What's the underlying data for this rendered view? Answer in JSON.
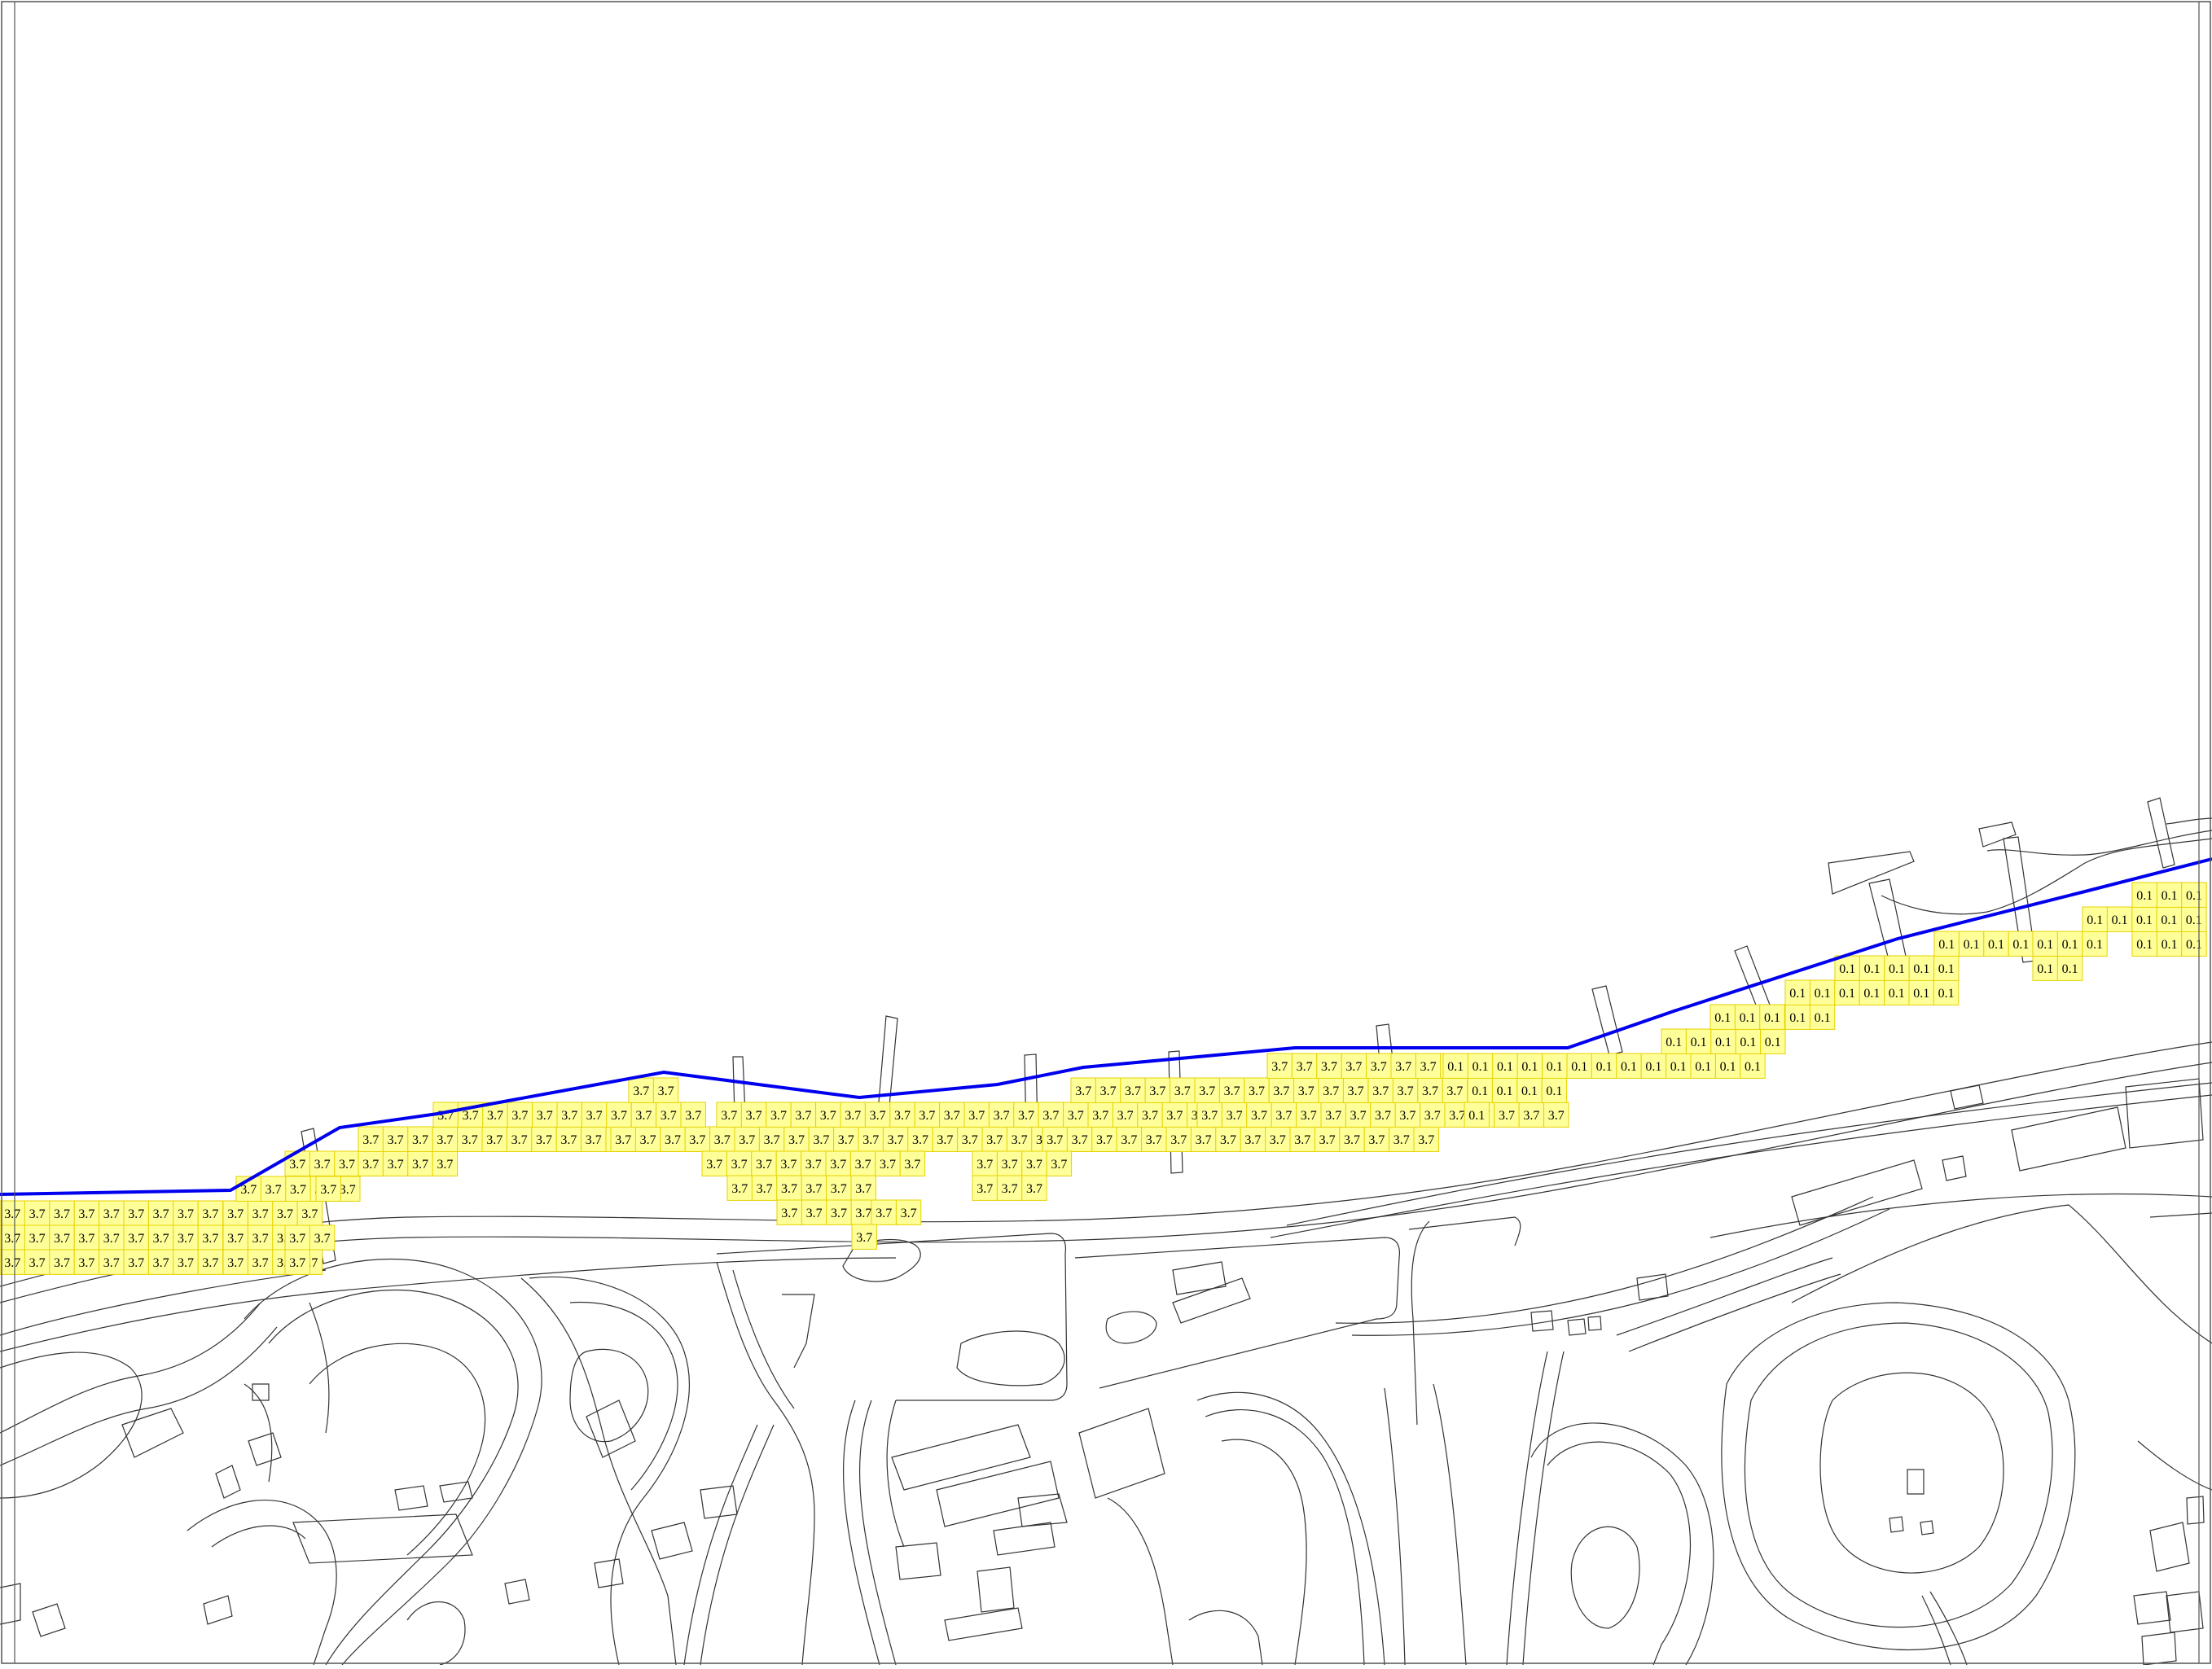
{
  "map": {
    "type": "inundation-depth-grid",
    "colors": {
      "background": "#ffffff",
      "frame": "#555555",
      "basemap_line": "#333333",
      "boundary_line": "#0000ee",
      "cell_fill": "#ffff99",
      "cell_stroke": "#e6d200",
      "label_text": "#000000"
    },
    "cell_value_labels": [
      "3.7",
      "0.1"
    ],
    "notes_visible": []
  }
}
